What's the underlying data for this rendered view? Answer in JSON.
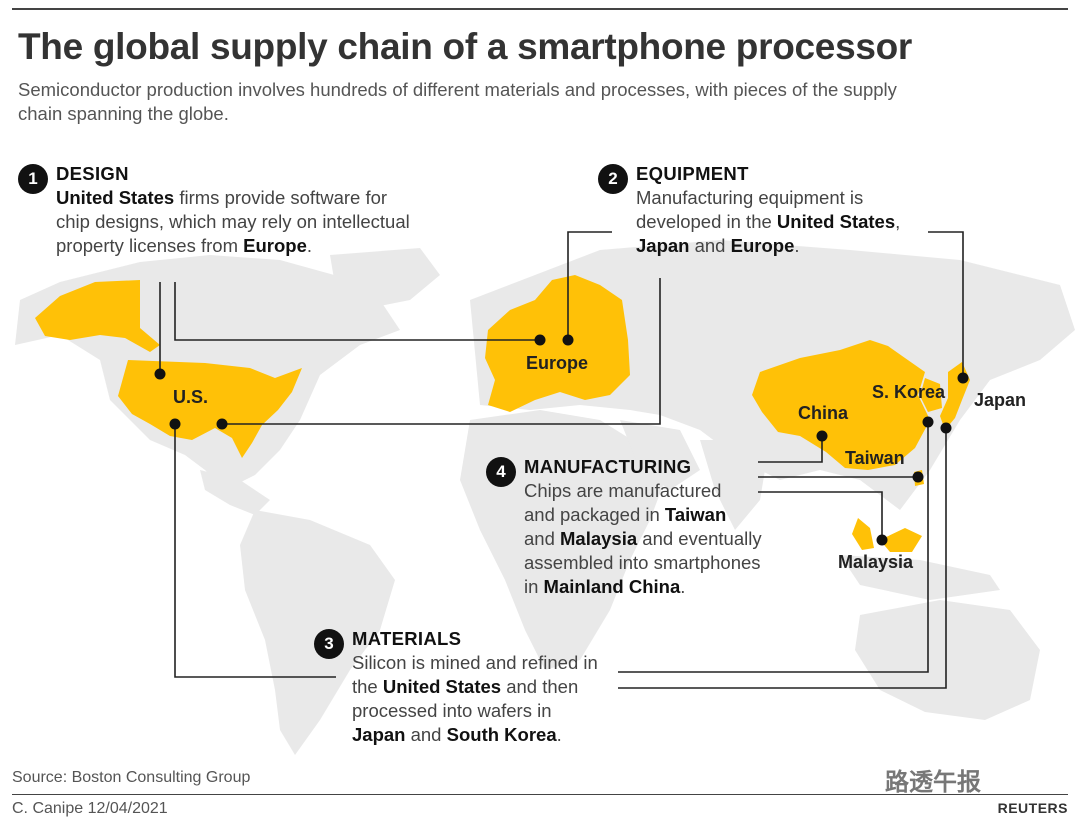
{
  "header": {
    "title": "The global supply chain of a smartphone processor",
    "subtitle": "Semiconductor production involves hundreds of different materials and processes, with pieces of the supply chain spanning the globe."
  },
  "steps": [
    {
      "number": "1",
      "heading": "DESIGN",
      "lines": [
        [
          {
            "t": "United States",
            "b": true
          },
          {
            "t": " firms provide software for"
          }
        ],
        [
          {
            "t": "chip designs, which may rely on intellectual"
          }
        ],
        [
          {
            "t": "property licenses from "
          },
          {
            "t": "Europe",
            "b": true
          },
          {
            "t": "."
          }
        ]
      ]
    },
    {
      "number": "2",
      "heading": "EQUIPMENT",
      "lines": [
        [
          {
            "t": "Manufacturing equipment is"
          }
        ],
        [
          {
            "t": "developed in the "
          },
          {
            "t": "United States",
            "b": true
          },
          {
            "t": ","
          }
        ],
        [
          {
            "t": "Japan",
            "b": true
          },
          {
            "t": " and "
          },
          {
            "t": "Europe",
            "b": true
          },
          {
            "t": "."
          }
        ]
      ]
    },
    {
      "number": "3",
      "heading": "MATERIALS",
      "lines": [
        [
          {
            "t": "Silicon is mined and refined in"
          }
        ],
        [
          {
            "t": "the "
          },
          {
            "t": "United States",
            "b": true
          },
          {
            "t": " and then"
          }
        ],
        [
          {
            "t": "processed into wafers in"
          }
        ],
        [
          {
            "t": "Japan",
            "b": true
          },
          {
            "t": " and "
          },
          {
            "t": "South Korea",
            "b": true
          },
          {
            "t": "."
          }
        ]
      ]
    },
    {
      "number": "4",
      "heading": "MANUFACTURING",
      "lines": [
        [
          {
            "t": "Chips are manufactured"
          }
        ],
        [
          {
            "t": "and packaged in "
          },
          {
            "t": "Taiwan",
            "b": true
          }
        ],
        [
          {
            "t": "and "
          },
          {
            "t": "Malaysia",
            "b": true
          },
          {
            "t": " and eventually"
          }
        ],
        [
          {
            "t": "assembled into smartphones"
          }
        ],
        [
          {
            "t": "in "
          },
          {
            "t": "Mainland China",
            "b": true
          },
          {
            "t": "."
          }
        ]
      ]
    }
  ],
  "regions": {
    "us": "U.S.",
    "europe": "Europe",
    "china": "China",
    "skorea": "S. Korea",
    "japan": "Japan",
    "taiwan": "Taiwan",
    "malaysia": "Malaysia"
  },
  "colors": {
    "highlight": "#FFC107",
    "land": "#e9e9e9",
    "line": "#222222"
  },
  "footer": {
    "source": "Source: Boston Consulting Group",
    "credit": "C. Canipe 12/04/2021",
    "reuters": "REUTERS",
    "watermark": "路透午报"
  }
}
